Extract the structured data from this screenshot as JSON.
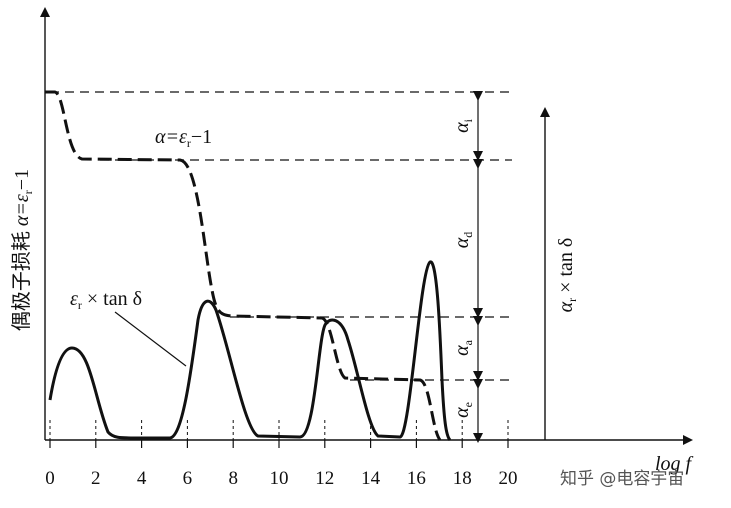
{
  "figure": {
    "y_label": {
      "prefix": "偶极子损耗 ",
      "var": "α=ε",
      "sub": "r",
      "tail": "−1"
    },
    "y2_label": {
      "var": "α",
      "sub": "r",
      "tail": " × tan δ"
    },
    "x_label": "log f",
    "x_ticks": [
      0,
      2,
      4,
      6,
      8,
      10,
      12,
      14,
      16,
      18,
      20
    ],
    "curve_alpha": {
      "var": "α=ε",
      "sub": "r",
      "tail": "−1"
    },
    "curve_loss": {
      "var": "ε",
      "sub": "r",
      "tail": " × tan δ"
    },
    "levels": [
      {
        "var": "α",
        "sub": "i"
      },
      {
        "var": "α",
        "sub": "d"
      },
      {
        "var": "α",
        "sub": "a"
      },
      {
        "var": "α",
        "sub": "e"
      }
    ],
    "watermark": "知乎 @电容宇宙"
  }
}
